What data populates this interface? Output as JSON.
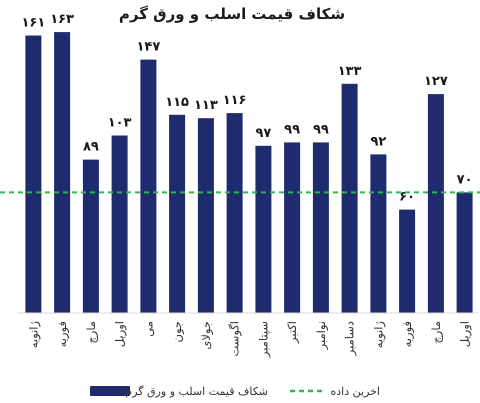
{
  "chart_data": {
    "type": "bar",
    "title": "شکاف قیمت اسلب و ورق گرم",
    "categories": [
      "ژانویه",
      "فوریه",
      "مارچ",
      "اوریل",
      "می",
      "جون",
      "جولای",
      "اگوست",
      "سپتامبر",
      "اکتبر",
      "نوامبر",
      "دسامبر",
      "ژانویه",
      "فوریه",
      "مارچ",
      "اوریل"
    ],
    "series": [
      {
        "name": "شکاف قیمت اسلب و ورق گرم",
        "values": [
          161,
          163,
          89,
          103,
          147,
          115,
          113,
          116,
          97,
          99,
          99,
          133,
          92,
          60,
          127,
          70
        ],
        "labels": [
          "۱۶۱",
          "۱۶۳",
          "۸۹",
          "۱۰۳",
          "۱۴۷",
          "۱۱۵",
          "۱۱۳",
          "۱۱۶",
          "۹۷",
          "۹۹",
          "۹۹",
          "۱۳۳",
          "۹۲",
          "۶۰",
          "۱۲۷",
          "۷۰"
        ],
        "color": "#1f2b6e"
      }
    ],
    "reference_line": {
      "name": "اخرین داده",
      "value": 70,
      "color": "#2db84d",
      "style": "dashed"
    },
    "ylim": [
      0,
      170
    ],
    "grid": false,
    "legend_position": "bottom",
    "xlabel": "",
    "ylabel": ""
  }
}
